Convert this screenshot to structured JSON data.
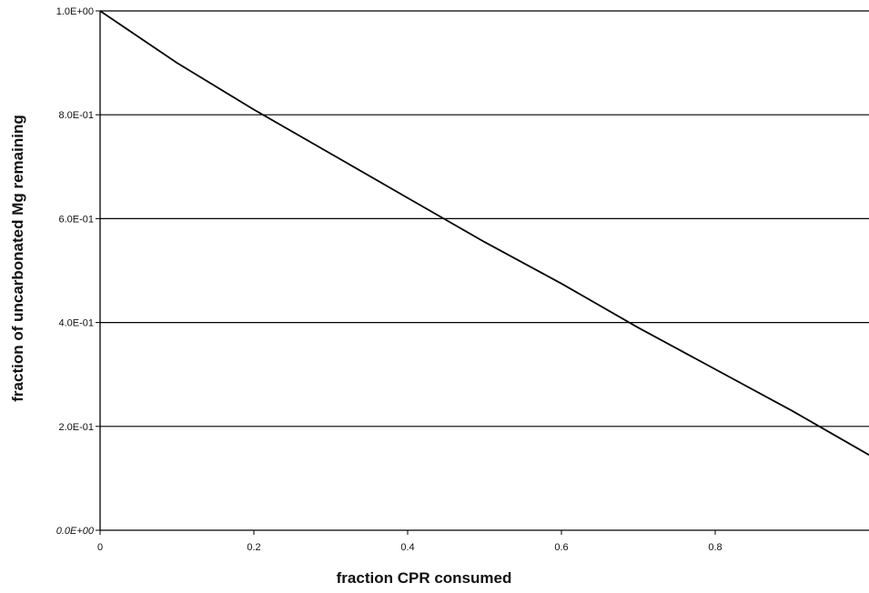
{
  "chart_data": {
    "type": "line",
    "title": "",
    "xlabel": "fraction CPR consumed",
    "ylabel": "fraction of uncarbonated Mg remaining",
    "xlim": [
      0,
      1
    ],
    "ylim": [
      0,
      1
    ],
    "x_ticks": [
      {
        "value": 0,
        "label": "0"
      },
      {
        "value": 0.2,
        "label": "0.2"
      },
      {
        "value": 0.4,
        "label": "0.4"
      },
      {
        "value": 0.6,
        "label": "0.6"
      },
      {
        "value": 0.8,
        "label": "0.8"
      }
    ],
    "y_ticks": [
      {
        "value": 0,
        "label": "0.0E+00"
      },
      {
        "value": 0.2,
        "label": "2.0E-01"
      },
      {
        "value": 0.4,
        "label": "4.0E-01"
      },
      {
        "value": 0.6,
        "label": "6.0E-01"
      },
      {
        "value": 0.8,
        "label": "8.0E-01"
      },
      {
        "value": 1,
        "label": "1.0E+00"
      }
    ],
    "grid": "horizontal",
    "legend": "none",
    "series": [
      {
        "x": [
          0,
          0.1,
          0.2,
          0.3,
          0.4,
          0.5,
          0.6,
          0.7,
          0.8,
          0.9,
          1.0
        ],
        "y": [
          1.0,
          0.9,
          0.81,
          0.725,
          0.64,
          0.555,
          0.475,
          0.39,
          0.31,
          0.23,
          0.145
        ],
        "color": "#000000"
      }
    ]
  }
}
